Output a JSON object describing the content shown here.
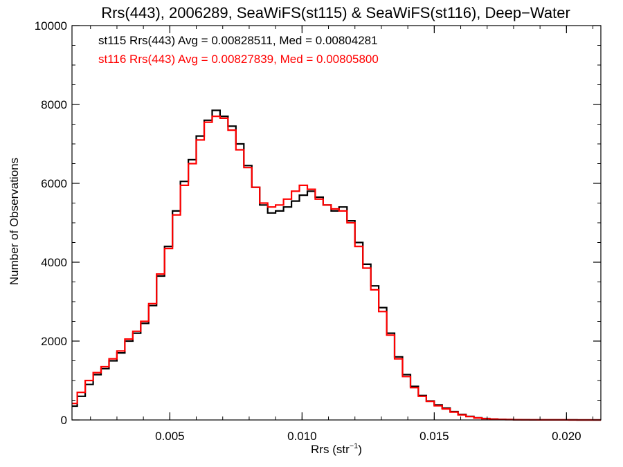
{
  "chart_data": {
    "type": "line",
    "step": true,
    "title": "Rrs(443), 2006289, SeaWiFS(st115) & SeaWiFS(st116), Deep−Water",
    "xlabel": "Rrs (str",
    "xlabel_sup": "−1",
    "xlabel_close": ")",
    "ylabel": "Number of Observations",
    "xlim": [
      0.0013,
      0.0213
    ],
    "ylim": [
      0,
      10000
    ],
    "x_ticks": [
      0.005,
      0.01,
      0.015,
      0.02
    ],
    "x_tick_labels": [
      "0.005",
      "0.010",
      "0.015",
      "0.020"
    ],
    "y_ticks": [
      0,
      2000,
      4000,
      6000,
      8000,
      10000
    ],
    "y_tick_labels": [
      "0",
      "2000",
      "4000",
      "6000",
      "8000",
      "10000"
    ],
    "legend_position": "top-left",
    "series": [
      {
        "name": "st115",
        "color": "#000000",
        "annotation": "st115 Rrs(443) Avg = 0.00828511, Med = 0.00804281",
        "x": [
          0.0013,
          0.0015,
          0.0018,
          0.0021,
          0.0024,
          0.0027,
          0.003,
          0.0033,
          0.0036,
          0.0039,
          0.0042,
          0.0045,
          0.0048,
          0.0051,
          0.0054,
          0.0057,
          0.006,
          0.0063,
          0.0066,
          0.0069,
          0.0072,
          0.0075,
          0.0078,
          0.0081,
          0.0084,
          0.0087,
          0.009,
          0.0093,
          0.0096,
          0.0099,
          0.0102,
          0.0105,
          0.0108,
          0.0111,
          0.0114,
          0.0117,
          0.012,
          0.0123,
          0.0126,
          0.0129,
          0.0132,
          0.0135,
          0.0138,
          0.0141,
          0.0144,
          0.0147,
          0.015,
          0.0153,
          0.0156,
          0.0159,
          0.0162,
          0.0165,
          0.0168,
          0.0171,
          0.0174,
          0.0177,
          0.018,
          0.0183,
          0.0186,
          0.0189,
          0.0192,
          0.0195,
          0.0198,
          0.0201,
          0.0204,
          0.0207,
          0.021,
          0.0213
        ],
        "values": [
          350,
          600,
          900,
          1150,
          1300,
          1500,
          1700,
          2000,
          2200,
          2450,
          2900,
          3650,
          4400,
          5300,
          6050,
          6600,
          7200,
          7600,
          7850,
          7700,
          7450,
          7000,
          6450,
          5900,
          5450,
          5250,
          5300,
          5400,
          5550,
          5700,
          5800,
          5650,
          5450,
          5300,
          5400,
          5050,
          4500,
          3950,
          3400,
          2850,
          2200,
          1600,
          1150,
          850,
          620,
          480,
          380,
          300,
          210,
          140,
          90,
          55,
          35,
          22,
          15,
          10,
          7,
          5,
          3,
          2,
          2,
          1,
          1,
          1,
          0,
          0,
          0,
          0
        ]
      },
      {
        "name": "st116",
        "color": "#ff0000",
        "annotation": "st116 Rrs(443) Avg = 0.00827839, Med = 0.00805800",
        "x": [
          0.0013,
          0.0015,
          0.0018,
          0.0021,
          0.0024,
          0.0027,
          0.003,
          0.0033,
          0.0036,
          0.0039,
          0.0042,
          0.0045,
          0.0048,
          0.0051,
          0.0054,
          0.0057,
          0.006,
          0.0063,
          0.0066,
          0.0069,
          0.0072,
          0.0075,
          0.0078,
          0.0081,
          0.0084,
          0.0087,
          0.009,
          0.0093,
          0.0096,
          0.0099,
          0.0102,
          0.0105,
          0.0108,
          0.0111,
          0.0114,
          0.0117,
          0.012,
          0.0123,
          0.0126,
          0.0129,
          0.0132,
          0.0135,
          0.0138,
          0.0141,
          0.0144,
          0.0147,
          0.015,
          0.0153,
          0.0156,
          0.0159,
          0.0162,
          0.0165,
          0.0168,
          0.0171,
          0.0174,
          0.0177,
          0.018,
          0.0183,
          0.0186,
          0.0189,
          0.0192,
          0.0195,
          0.0198,
          0.0201,
          0.0204,
          0.0207,
          0.021,
          0.0213
        ],
        "values": [
          420,
          700,
          1000,
          1200,
          1350,
          1550,
          1750,
          2050,
          2250,
          2500,
          2950,
          3700,
          4350,
          5200,
          5950,
          6500,
          7100,
          7550,
          7700,
          7650,
          7350,
          6850,
          6400,
          5900,
          5500,
          5400,
          5450,
          5600,
          5800,
          5950,
          5850,
          5600,
          5450,
          5350,
          5300,
          5000,
          4400,
          3850,
          3300,
          2750,
          2150,
          1550,
          1100,
          820,
          600,
          470,
          360,
          280,
          200,
          130,
          85,
          50,
          32,
          20,
          13,
          9,
          6,
          4,
          3,
          2,
          1,
          1,
          1,
          0,
          0,
          0,
          0,
          0
        ]
      }
    ]
  }
}
